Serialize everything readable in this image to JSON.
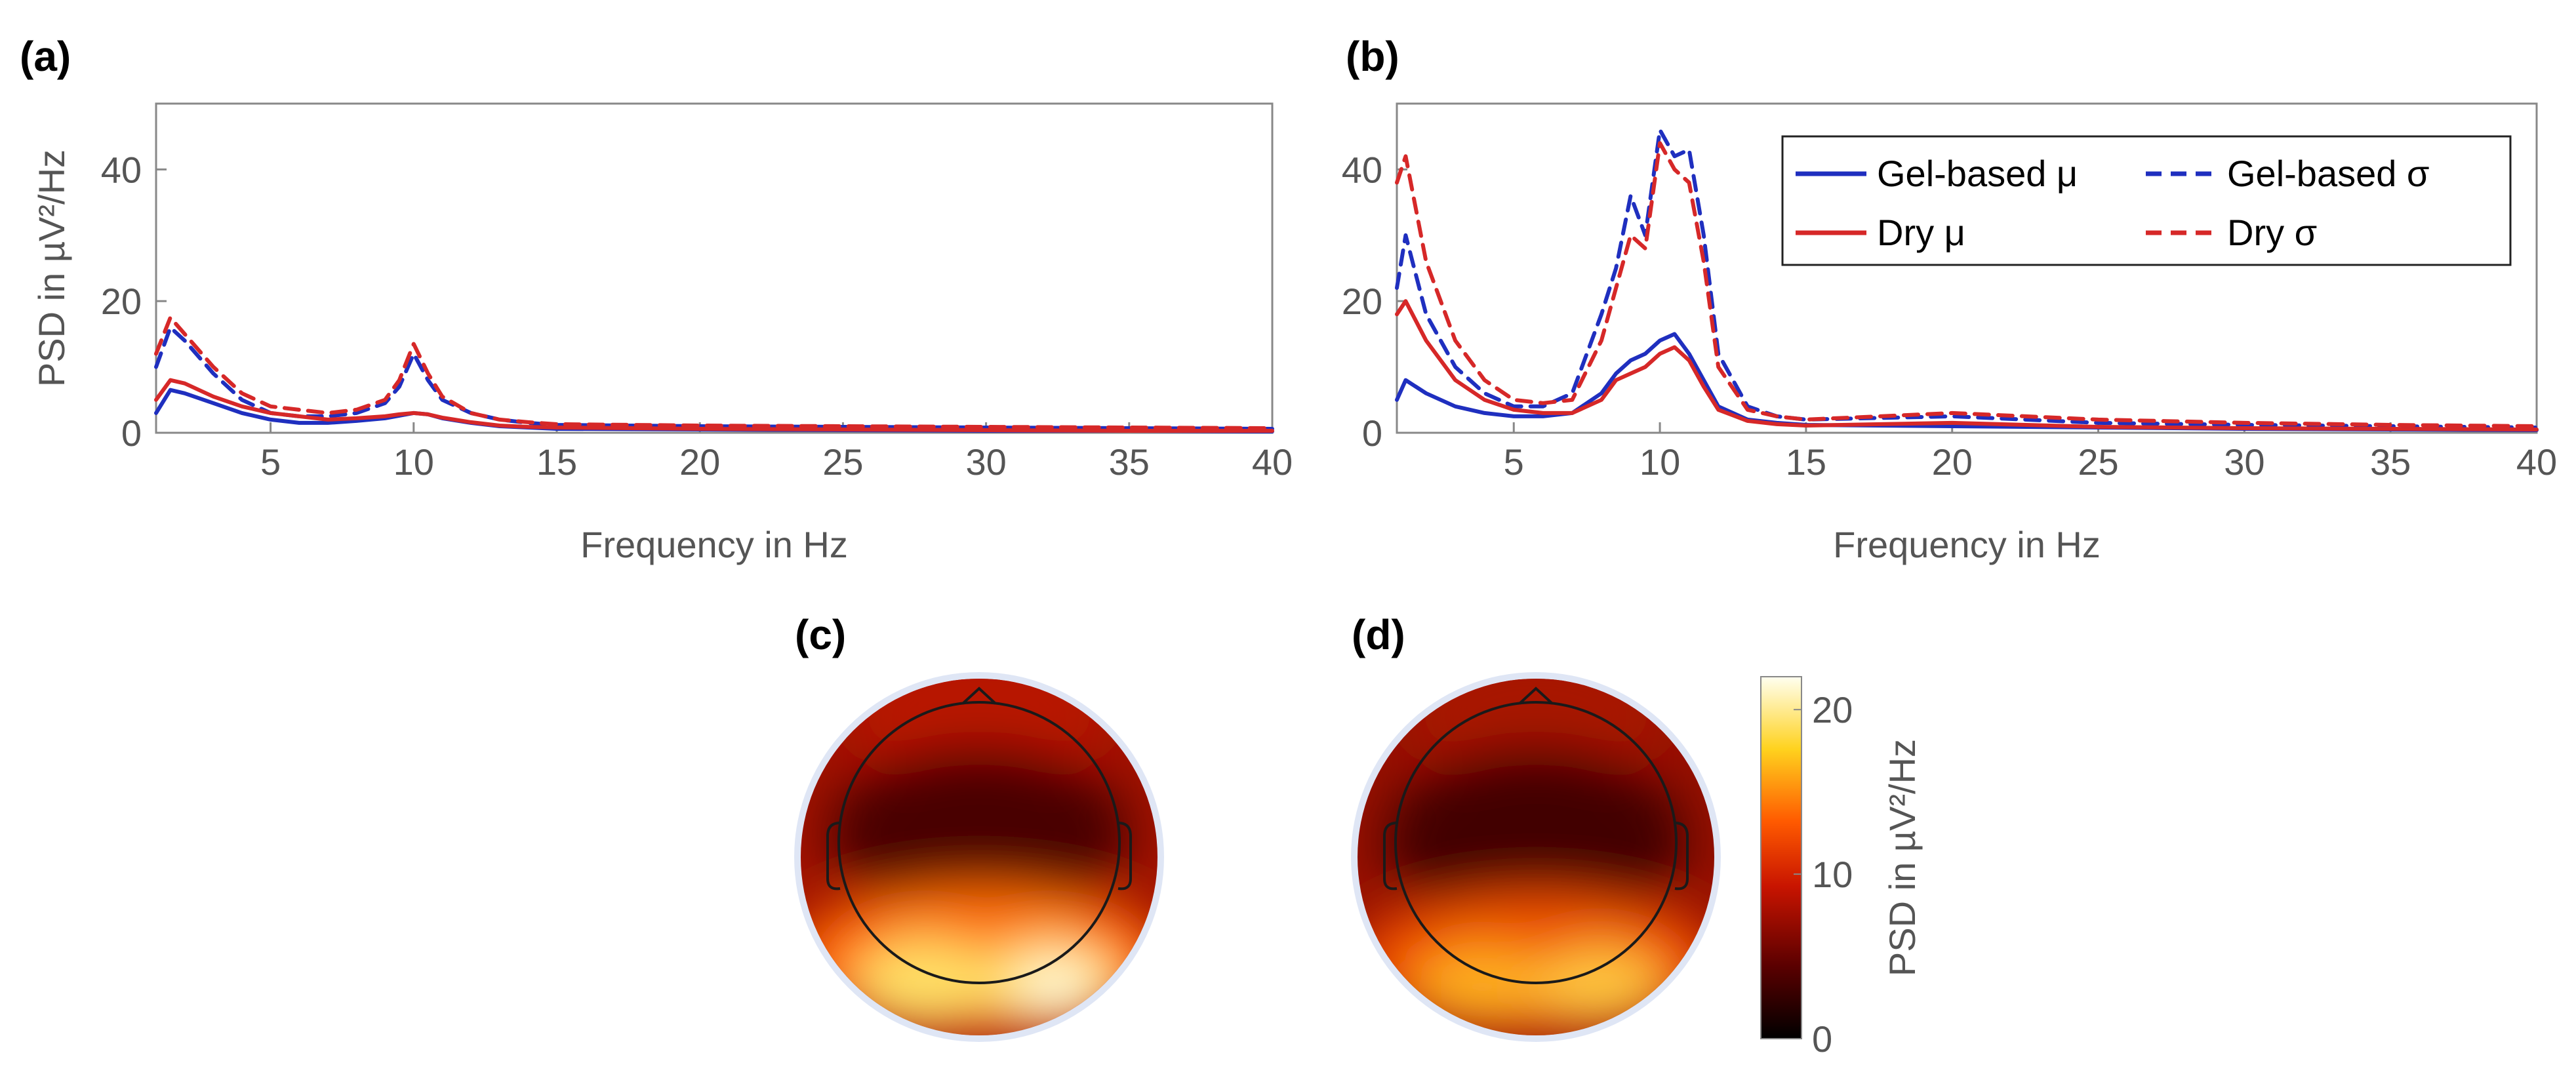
{
  "panels": {
    "a": {
      "label": "(a)"
    },
    "b": {
      "label": "(b)"
    },
    "c": {
      "label": "(c)"
    },
    "d": {
      "label": "(d)"
    }
  },
  "colors": {
    "gel": "#1f2fbf",
    "dry": "#d62828",
    "axis": "#888888",
    "text": "#555555",
    "head_outline": "#1a1a1a"
  },
  "colorbar": {
    "label": "PSD in µV²/Hz",
    "ticks": [
      "0",
      "10",
      "20"
    ],
    "tick_values": [
      0,
      10,
      20
    ],
    "range": [
      0,
      22
    ],
    "colormap": "hot"
  },
  "topoplots": {
    "c": {
      "peak_value": 21,
      "occipital_level": 17,
      "frontal_level": 8,
      "central_level": 4
    },
    "d": {
      "peak_value": 19,
      "occipital_level": 14,
      "frontal_level": 7,
      "central_level": 4
    }
  },
  "chart_data": [
    {
      "id": "a",
      "type": "line",
      "title": "",
      "xlabel": "Frequency in Hz",
      "ylabel": "PSD in µV²/Hz",
      "xlim": [
        1,
        40
      ],
      "ylim": [
        0,
        50
      ],
      "xticks": [
        "5",
        "10",
        "15",
        "20",
        "25",
        "30",
        "35",
        "40"
      ],
      "xtick_values": [
        5,
        10,
        15,
        20,
        25,
        30,
        35,
        40
      ],
      "yticks": [
        "0",
        "20",
        "40"
      ],
      "ytick_values": [
        0,
        20,
        40
      ],
      "x": [
        1,
        1.5,
        2,
        3,
        4,
        5,
        6,
        7,
        8,
        9,
        9.5,
        10,
        10.5,
        11,
        12,
        13,
        14,
        15,
        20,
        25,
        30,
        35,
        40
      ],
      "series": [
        {
          "name": "Gel-based μ",
          "style": "solid",
          "color_key": "gel",
          "values": [
            3,
            6.5,
            6,
            4.5,
            3,
            2,
            1.5,
            1.5,
            1.8,
            2.2,
            2.6,
            3,
            2.8,
            2.2,
            1.5,
            1,
            0.8,
            0.6,
            0.5,
            0.4,
            0.3,
            0.3,
            0.2
          ]
        },
        {
          "name": "Dry μ",
          "style": "solid",
          "color_key": "dry",
          "values": [
            5,
            8,
            7.5,
            5.5,
            4,
            3,
            2.5,
            2,
            2.2,
            2.5,
            2.8,
            3,
            2.8,
            2.3,
            1.6,
            1.1,
            0.9,
            0.8,
            0.6,
            0.5,
            0.4,
            0.3,
            0.3
          ]
        },
        {
          "name": "Gel-based σ",
          "style": "dashed",
          "color_key": "gel",
          "values": [
            10,
            16,
            14,
            9,
            5,
            3,
            2.5,
            2.5,
            3,
            4.5,
            7,
            12,
            8,
            5,
            3,
            2,
            1.5,
            1.2,
            1,
            0.9,
            0.8,
            0.7,
            0.6
          ]
        },
        {
          "name": "Dry σ",
          "style": "dashed",
          "color_key": "dry",
          "values": [
            12,
            17.5,
            15,
            10,
            6,
            4,
            3.5,
            3,
            3.5,
            5,
            8,
            13.5,
            9,
            5.5,
            3,
            2,
            1.6,
            1.3,
            1.1,
            1,
            0.9,
            0.8,
            0.7
          ]
        }
      ]
    },
    {
      "id": "b",
      "type": "line",
      "title": "",
      "xlabel": "Frequency in Hz",
      "ylabel": "",
      "xlim": [
        1,
        40
      ],
      "ylim": [
        0,
        50
      ],
      "xticks": [
        "5",
        "10",
        "15",
        "20",
        "25",
        "30",
        "35",
        "40"
      ],
      "xtick_values": [
        5,
        10,
        15,
        20,
        25,
        30,
        35,
        40
      ],
      "yticks": [
        "0",
        "20",
        "40"
      ],
      "ytick_values": [
        0,
        20,
        40
      ],
      "legend_position": "top-right",
      "x": [
        1,
        1.3,
        2,
        3,
        4,
        5,
        6,
        7,
        8,
        8.5,
        9,
        9.5,
        10,
        10.5,
        11,
        11.5,
        12,
        13,
        14,
        15,
        20,
        25,
        30,
        35,
        40
      ],
      "series": [
        {
          "name": "Gel-based μ",
          "style": "solid",
          "color_key": "gel",
          "values": [
            5,
            8,
            6,
            4,
            3,
            2.5,
            2.5,
            3,
            6,
            9,
            11,
            12,
            14,
            15,
            12,
            8,
            4,
            2,
            1.5,
            1.2,
            1,
            0.8,
            0.6,
            0.5,
            0.4
          ]
        },
        {
          "name": "Dry μ",
          "style": "solid",
          "color_key": "dry",
          "values": [
            18,
            20,
            14,
            8,
            5,
            3.5,
            3,
            3,
            5,
            8,
            9,
            10,
            12,
            13,
            11,
            7,
            3.5,
            1.8,
            1.3,
            1.1,
            1.5,
            0.9,
            0.7,
            0.6,
            0.5
          ]
        },
        {
          "name": "Gel-based σ",
          "style": "dashed",
          "color_key": "gel",
          "values": [
            22,
            30,
            18,
            10,
            6,
            4,
            4,
            6,
            18,
            25,
            36,
            30,
            46,
            42,
            43,
            30,
            12,
            4,
            2.5,
            2,
            2.5,
            1.5,
            1.2,
            1,
            0.8
          ]
        },
        {
          "name": "Dry σ",
          "style": "dashed",
          "color_key": "dry",
          "values": [
            38,
            42,
            26,
            14,
            8,
            5,
            4.5,
            5,
            14,
            22,
            30,
            28,
            44,
            40,
            38,
            26,
            10,
            3.5,
            2.5,
            2,
            3,
            2,
            1.5,
            1.2,
            1
          ]
        }
      ]
    }
  ]
}
